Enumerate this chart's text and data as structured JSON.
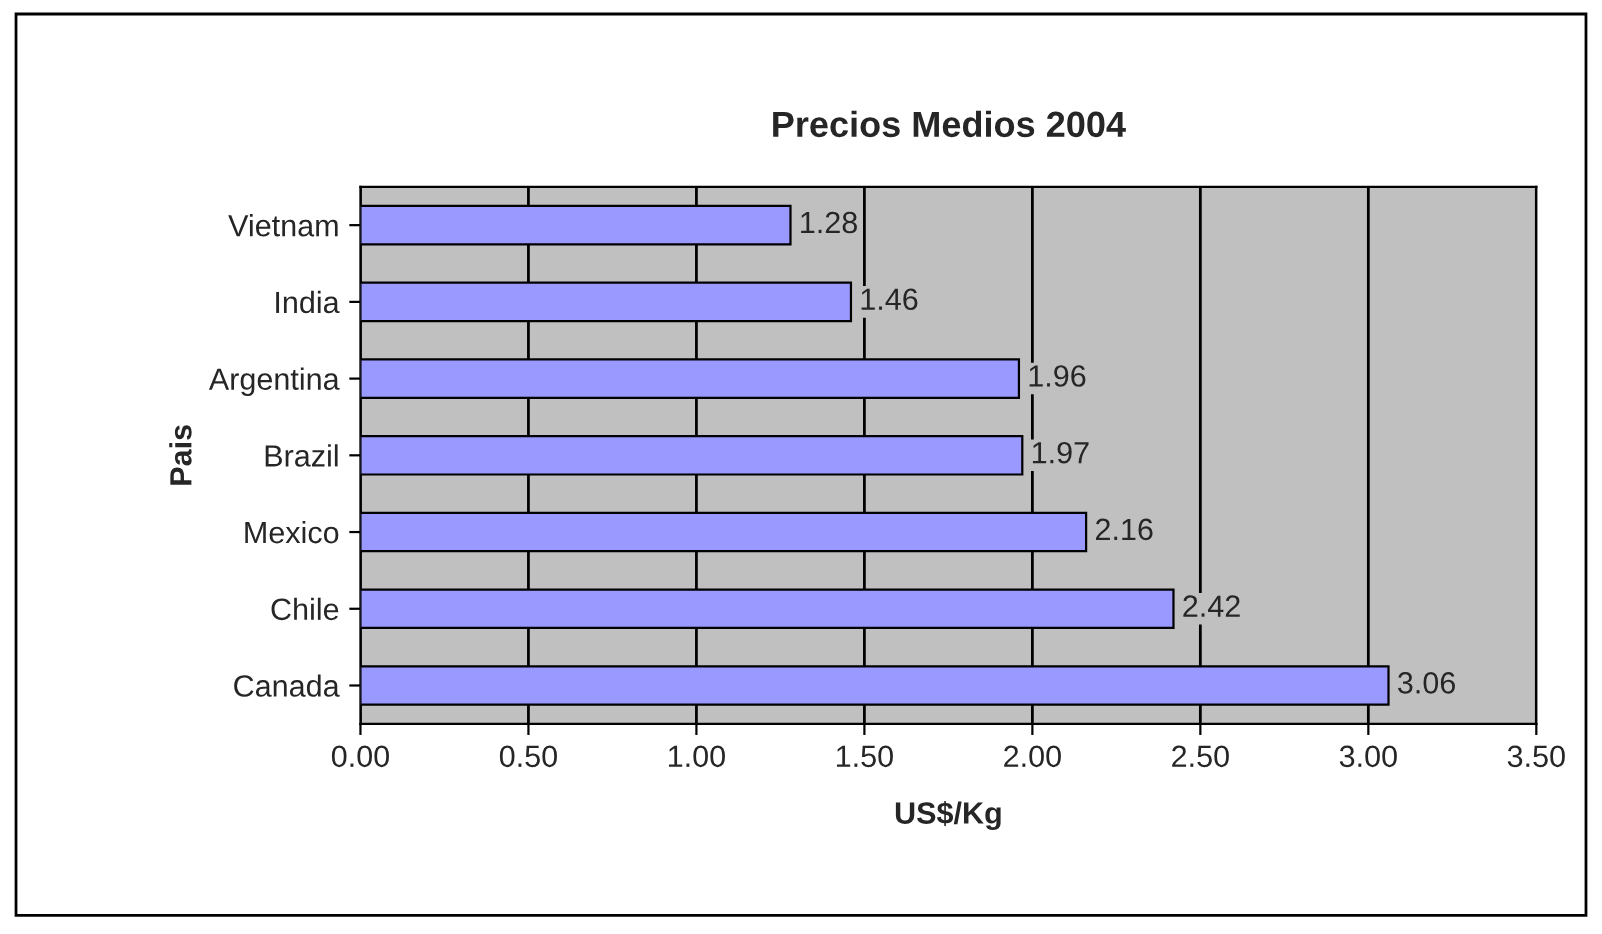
{
  "chart_data": {
    "type": "bar",
    "orientation": "horizontal",
    "title": "Precios Medios 2004",
    "xlabel": "US$/Kg",
    "ylabel": "Pais",
    "categories": [
      "Vietnam",
      "India",
      "Argentina",
      "Brazil",
      "Mexico",
      "Chile",
      "Canada"
    ],
    "values": [
      1.28,
      1.46,
      1.96,
      1.97,
      2.16,
      2.42,
      3.06
    ],
    "color": "#9999ff",
    "xlim": [
      0,
      3.5
    ],
    "xticks": [
      {
        "value": 0,
        "label": "0.00"
      },
      {
        "value": 0.5,
        "label": "0.50"
      },
      {
        "value": 1,
        "label": "1.00"
      },
      {
        "value": 1.5,
        "label": "1.50"
      },
      {
        "value": 2,
        "label": "2.00"
      },
      {
        "value": 2.5,
        "label": "2.50"
      },
      {
        "value": 3,
        "label": "3.00"
      },
      {
        "value": 3.5,
        "label": "3.50"
      }
    ],
    "grid": "x",
    "legend": false,
    "data_labels": true
  }
}
